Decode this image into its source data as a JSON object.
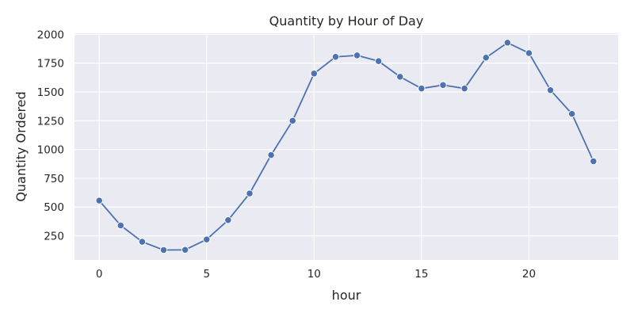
{
  "chart_data": {
    "type": "line",
    "title": "Quantity by Hour of Day",
    "xlabel": "hour",
    "ylabel": "Quantity Ordered",
    "xlim": [
      -1.15,
      24.15
    ],
    "ylim": [
      40,
      2010
    ],
    "xticks": [
      0,
      5,
      10,
      15,
      20
    ],
    "yticks": [
      250,
      500,
      750,
      1000,
      1250,
      1500,
      1750,
      2000
    ],
    "grid": true,
    "legend": "none",
    "colors": {
      "line": "#4c72b0",
      "plot_bg": "#eaeaf2",
      "grid": "#ffffff"
    },
    "series": [
      {
        "x": [
          0,
          1,
          2,
          3,
          4,
          5,
          6,
          7,
          8,
          9,
          10,
          11,
          12,
          13,
          14,
          15,
          16,
          17,
          18,
          19,
          20,
          21,
          22,
          23
        ],
        "y": [
          556,
          340,
          198,
          126,
          128,
          218,
          386,
          618,
          952,
          1250,
          1660,
          1805,
          1818,
          1768,
          1632,
          1530,
          1560,
          1530,
          1798,
          1928,
          1838,
          1516,
          1310,
          898
        ]
      }
    ]
  }
}
